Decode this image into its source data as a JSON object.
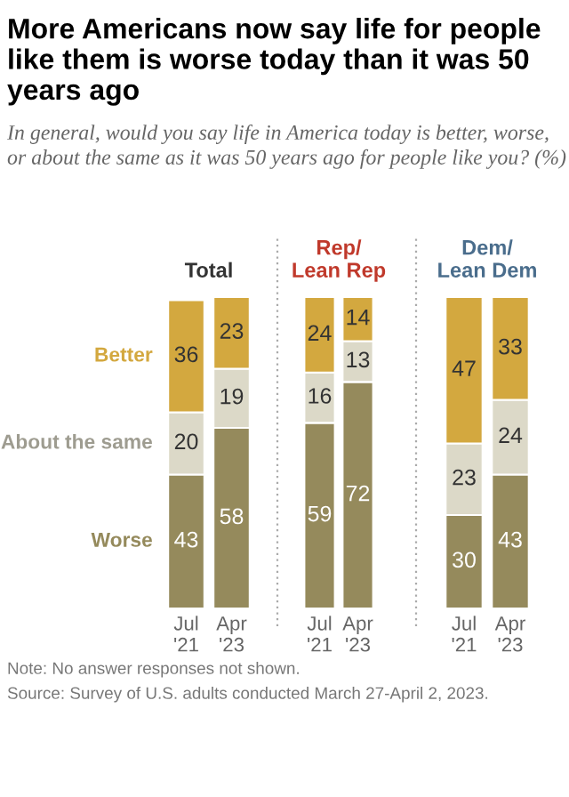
{
  "chart_data": [
    {
      "type": "bar",
      "title": "More Americans now say life for people like them is worse today than it was 50 years ago",
      "subtitle": "In general, would you say life in America today is better, worse, or about the same as it was 50 years ago for people like you? (%)",
      "annotations": [
        "Note: No answer responses not shown.",
        "Source: Survey of U.S. adults conducted March 27-April 2, 2023."
      ],
      "xlabel": "Total",
      "categories": [
        "Jul\n'21",
        "Apr\n'23"
      ],
      "stacked": true,
      "data_labels": true,
      "legend": "left",
      "series": [
        {
          "name": "Worse",
          "color": "#958a5c",
          "values": [
            43,
            58
          ]
        },
        {
          "name": "About the same",
          "color": "#dcd9c8",
          "values": [
            20,
            19
          ]
        },
        {
          "name": "Better",
          "color": "#d3a83f",
          "values": [
            36,
            23
          ]
        }
      ]
    },
    {
      "type": "bar",
      "xlabel": "Rep/\nLean Rep",
      "categories": [
        "Jul\n'21",
        "Apr\n'23"
      ],
      "stacked": true,
      "data_labels": true,
      "series": [
        {
          "color": "#958a5c",
          "values": [
            59,
            72
          ]
        },
        {
          "color": "#dcd9c8",
          "values": [
            16,
            13
          ]
        },
        {
          "color": "#d3a83f",
          "values": [
            24,
            14
          ]
        }
      ]
    },
    {
      "type": "bar",
      "xlabel": "Dem/\nLean Dem",
      "categories": [
        "Jul\n'21",
        "Apr\n'23"
      ],
      "stacked": true,
      "data_labels": true,
      "series": [
        {
          "color": "#958a5c",
          "values": [
            30,
            43
          ]
        },
        {
          "color": "#dcd9c8",
          "values": [
            23,
            24
          ]
        },
        {
          "color": "#d3a83f",
          "values": [
            47,
            33
          ]
        }
      ]
    }
  ]
}
